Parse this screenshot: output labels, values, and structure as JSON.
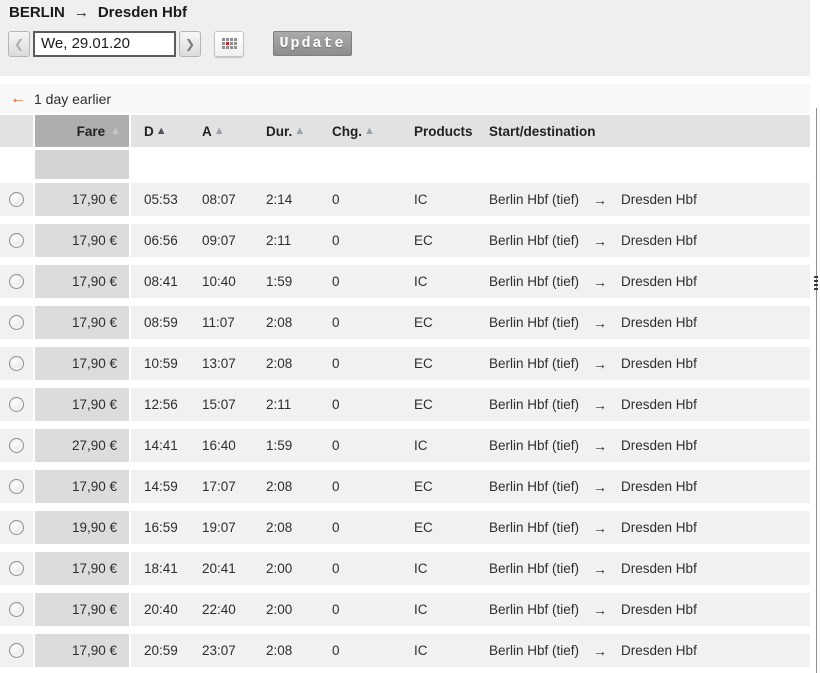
{
  "route_header": {
    "origin": "BERLIN",
    "arrow": "→",
    "destination": "Dresden Hbf"
  },
  "date_nav": {
    "prev_glyph": "❮",
    "next_glyph": "❯",
    "date_value": "We, 29.01.20",
    "update_label": "Update"
  },
  "earlier_link": {
    "arrow": "←",
    "label": "1 day earlier"
  },
  "colors": {
    "accent_orange": "#dd611c",
    "calendar_red": "#c1272d",
    "button_gray": "#9b9b9b"
  },
  "table": {
    "sort_glyph": "▲",
    "headers": {
      "fare": "Fare",
      "dep": "D",
      "arr": "A",
      "dur": "Dur.",
      "chg": "Chg.",
      "products": "Products",
      "startdest": "Start/destination"
    },
    "rows": [
      {
        "fare": "17,90 €",
        "dep": "05:53",
        "arr": "08:07",
        "dur": "2:14",
        "chg": "0",
        "product": "IC",
        "from": "Berlin Hbf (tief)",
        "arrow": "→",
        "to": "Dresden Hbf"
      },
      {
        "fare": "17,90 €",
        "dep": "06:56",
        "arr": "09:07",
        "dur": "2:11",
        "chg": "0",
        "product": "EC",
        "from": "Berlin Hbf (tief)",
        "arrow": "→",
        "to": "Dresden Hbf"
      },
      {
        "fare": "17,90 €",
        "dep": "08:41",
        "arr": "10:40",
        "dur": "1:59",
        "chg": "0",
        "product": "IC",
        "from": "Berlin Hbf (tief)",
        "arrow": "→",
        "to": "Dresden Hbf"
      },
      {
        "fare": "17,90 €",
        "dep": "08:59",
        "arr": "11:07",
        "dur": "2:08",
        "chg": "0",
        "product": "EC",
        "from": "Berlin Hbf (tief)",
        "arrow": "→",
        "to": "Dresden Hbf"
      },
      {
        "fare": "17,90 €",
        "dep": "10:59",
        "arr": "13:07",
        "dur": "2:08",
        "chg": "0",
        "product": "EC",
        "from": "Berlin Hbf (tief)",
        "arrow": "→",
        "to": "Dresden Hbf"
      },
      {
        "fare": "17,90 €",
        "dep": "12:56",
        "arr": "15:07",
        "dur": "2:11",
        "chg": "0",
        "product": "EC",
        "from": "Berlin Hbf (tief)",
        "arrow": "→",
        "to": "Dresden Hbf"
      },
      {
        "fare": "27,90 €",
        "dep": "14:41",
        "arr": "16:40",
        "dur": "1:59",
        "chg": "0",
        "product": "IC",
        "from": "Berlin Hbf (tief)",
        "arrow": "→",
        "to": "Dresden Hbf"
      },
      {
        "fare": "17,90 €",
        "dep": "14:59",
        "arr": "17:07",
        "dur": "2:08",
        "chg": "0",
        "product": "EC",
        "from": "Berlin Hbf (tief)",
        "arrow": "→",
        "to": "Dresden Hbf"
      },
      {
        "fare": "19,90 €",
        "dep": "16:59",
        "arr": "19:07",
        "dur": "2:08",
        "chg": "0",
        "product": "EC",
        "from": "Berlin Hbf (tief)",
        "arrow": "→",
        "to": "Dresden Hbf"
      },
      {
        "fare": "17,90 €",
        "dep": "18:41",
        "arr": "20:41",
        "dur": "2:00",
        "chg": "0",
        "product": "IC",
        "from": "Berlin Hbf (tief)",
        "arrow": "→",
        "to": "Dresden Hbf"
      },
      {
        "fare": "17,90 €",
        "dep": "20:40",
        "arr": "22:40",
        "dur": "2:00",
        "chg": "0",
        "product": "IC",
        "from": "Berlin Hbf (tief)",
        "arrow": "→",
        "to": "Dresden Hbf"
      },
      {
        "fare": "17,90 €",
        "dep": "20:59",
        "arr": "23:07",
        "dur": "2:08",
        "chg": "0",
        "product": "IC",
        "from": "Berlin Hbf (tief)",
        "arrow": "→",
        "to": "Dresden Hbf"
      }
    ]
  }
}
